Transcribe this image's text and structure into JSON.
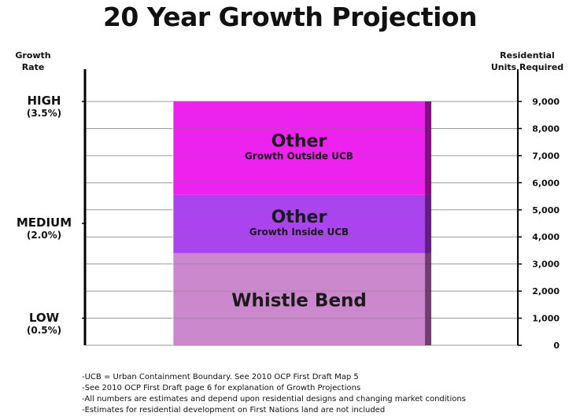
{
  "title": "20 Year Growth Projection",
  "left_axis_title": [
    "Growth",
    "Rate"
  ],
  "right_axis_title": [
    "Residential",
    "Units Required"
  ],
  "levels": [
    {
      "name": "HIGH",
      "pct": "(3.5%)",
      "value": 9000
    },
    {
      "name": "MEDIUM",
      "pct": "(2.0%)",
      "value": 4500
    },
    {
      "name": "LOW",
      "pct": "(0.5%)",
      "value": 1000
    }
  ],
  "chart_data": {
    "type": "bar",
    "stacked": true,
    "ylim": [
      0,
      9000
    ],
    "yticks": [
      "0",
      "1,000",
      "2,000",
      "3,000",
      "4,000",
      "5,000",
      "6,000",
      "7,000",
      "8,000",
      "9,000"
    ],
    "ytick_values": [
      0,
      1000,
      2000,
      3000,
      4000,
      5000,
      6000,
      7000,
      8000,
      9000
    ],
    "grid": true,
    "segments": [
      {
        "label": "Whistle Bend",
        "sublabel": "",
        "from": 0,
        "to": 3400,
        "color": "#cc88cc"
      },
      {
        "label": "Other",
        "sublabel": "Growth Inside UCB",
        "from": 3400,
        "to": 5550,
        "color": "#aa44ee"
      },
      {
        "label": "Other",
        "sublabel": "Growth Outside UCB",
        "from": 5550,
        "to": 9000,
        "color": "#ee22ee"
      }
    ]
  },
  "notes": [
    "-UCB = Urban Containment Boundary. See 2010 OCP First Draft Map 5",
    "-See 2010 OCP First Draft page 6 for explanation of Growth Projections",
    "-All numbers are estimates and depend upon residential designs and changing market conditions",
    "-Estimates for residential development on First Nations land are not included"
  ]
}
